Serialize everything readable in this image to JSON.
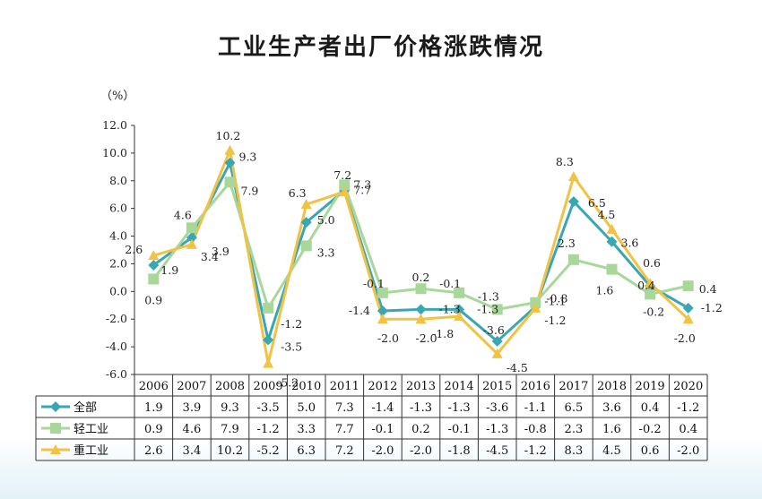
{
  "title": "工业生产者出厂价格涨跌情况",
  "unit": "（%）",
  "chart_data": {
    "type": "line",
    "x": [
      "2006",
      "2007",
      "2008",
      "2009",
      "2010",
      "2011",
      "2012",
      "2013",
      "2014",
      "2015",
      "2016",
      "2017",
      "2018",
      "2019",
      "2020"
    ],
    "ylim": [
      -6.0,
      12.0
    ],
    "yticks": [
      "12.0",
      "10.0",
      "8.0",
      "6.0",
      "4.0",
      "2.0",
      "0.0",
      "-2.0",
      "-4.0",
      "-6.0"
    ],
    "grid": false,
    "legend": "table-left",
    "series": [
      {
        "name": "全部",
        "color": "#3aa6b4",
        "marker": "diamond",
        "values": [
          1.9,
          3.9,
          9.3,
          -3.5,
          5.0,
          7.3,
          -1.4,
          -1.3,
          -1.3,
          -3.6,
          -1.1,
          6.5,
          3.6,
          0.4,
          -1.2
        ],
        "labels": [
          "1.9",
          "3.9",
          "9.3",
          "-3.5",
          "5.0",
          "7.3",
          "-1.4",
          "-1.3",
          "-1.3",
          "-3.6",
          "-1.1",
          "6.5",
          "3.6",
          "0.4",
          "-1.2"
        ]
      },
      {
        "name": "轻工业",
        "color": "#a9d79a",
        "marker": "square",
        "values": [
          0.9,
          4.6,
          7.9,
          -1.2,
          3.3,
          7.7,
          -0.1,
          0.2,
          -0.1,
          -1.3,
          -0.8,
          2.3,
          1.6,
          -0.2,
          0.4
        ],
        "labels": [
          "0.9",
          "4.6",
          "7.9",
          "-1.2",
          "3.3",
          "7.7",
          "-0.1",
          "0.2",
          "-0.1",
          "-1.3",
          "-0.8",
          "2.3",
          "1.6",
          "-0.2",
          "0.4"
        ]
      },
      {
        "name": "重工业",
        "color": "#f2c245",
        "marker": "triangle",
        "values": [
          2.6,
          3.4,
          10.2,
          -5.2,
          6.3,
          7.2,
          -2.0,
          -2.0,
          -1.8,
          -4.5,
          -1.2,
          8.3,
          4.5,
          0.6,
          -2.0
        ],
        "labels": [
          "2.6",
          "3.4",
          "10.2",
          "-5.2",
          "6.3",
          "7.2",
          "-2.0",
          "-2.0",
          "-1.8",
          "-4.5",
          "-1.2",
          "8.3",
          "4.5",
          "0.6",
          "-2.0"
        ]
      }
    ]
  }
}
